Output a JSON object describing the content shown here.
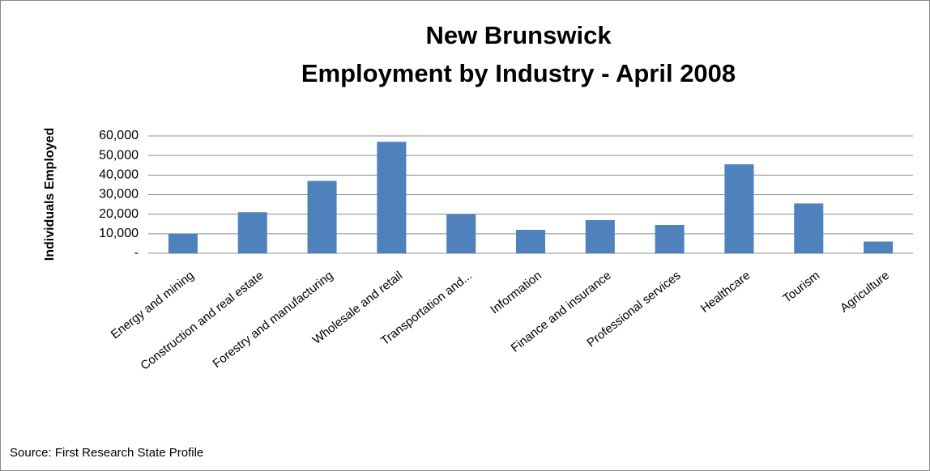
{
  "chart_data": {
    "type": "bar",
    "title": [
      "New Brunswick",
      "Employment by Industry - April 2008"
    ],
    "y_label": "Individuals Employed",
    "source": "Source: First Research State Profile",
    "categories": [
      "Energy and mining",
      "Construction and real estate",
      "Forestry and manufacturing",
      "Wholesale and retail",
      "Transportation and...",
      "Information",
      "Finance and insurance",
      "Professional services",
      "Healthcare",
      "Tourism",
      "Agriculture"
    ],
    "values": [
      10000,
      21000,
      37000,
      57000,
      20000,
      12000,
      17000,
      14500,
      45500,
      25500,
      6000
    ],
    "color": "#4f81bd",
    "ylim": [
      0,
      60000
    ],
    "yticks": [
      {
        "value": 0,
        "label": "-"
      },
      {
        "value": 10000,
        "label": "10,000"
      },
      {
        "value": 20000,
        "label": "20,000"
      },
      {
        "value": 30000,
        "label": "30,000"
      },
      {
        "value": 40000,
        "label": "40,000"
      },
      {
        "value": 50000,
        "label": "50,000"
      },
      {
        "value": 60000,
        "label": "60,000"
      }
    ],
    "grid": true
  }
}
